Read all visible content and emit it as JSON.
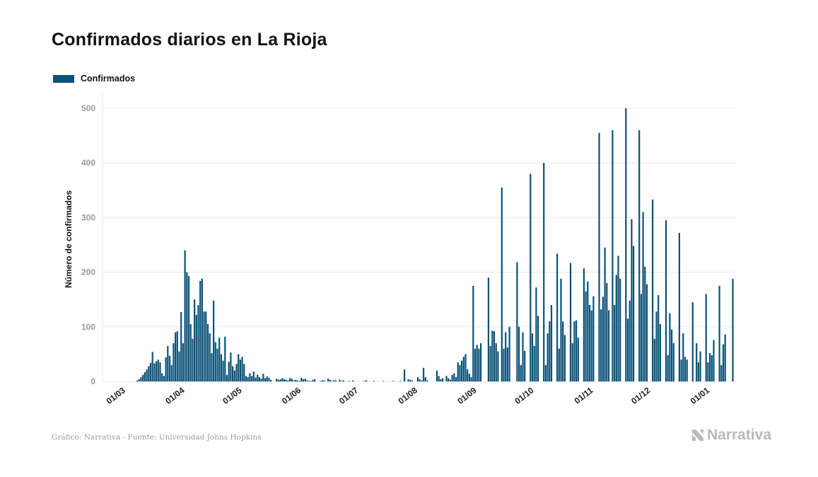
{
  "footer": {
    "credit": "Gráfico: Narrativa - Fuente: Universidad Johns Hopkins"
  },
  "brand": {
    "name": "Narrativa",
    "icon": "narrativa-logo-icon"
  },
  "colors": {
    "bar": "#0b5178",
    "grid": "#e8e8e8",
    "tick": "#9a9a9a",
    "brand": "#b9b9b9"
  },
  "chart_data": {
    "type": "bar",
    "title": "Confirmados diarios en La Rioja",
    "ylabel": "Número de confirmados",
    "xlabel": "",
    "ylim": [
      0,
      500
    ],
    "yticks": [
      0,
      100,
      200,
      300,
      400,
      500
    ],
    "xticks": [
      "01/03",
      "01/04",
      "01/05",
      "01/06",
      "01/07",
      "01/08",
      "01/09",
      "01/10",
      "01/11",
      "01/12",
      "01/01"
    ],
    "grid": true,
    "legend_position": "top-left",
    "start_date": "2020-03-01",
    "series": [
      {
        "name": "Confirmados",
        "values": [
          0,
          0,
          0,
          0,
          0,
          0,
          0,
          0,
          0,
          0,
          2,
          4,
          8,
          12,
          17,
          22,
          28,
          34,
          54,
          33,
          37,
          40,
          35,
          15,
          10,
          44,
          65,
          47,
          30,
          70,
          90,
          92,
          55,
          127,
          70,
          240,
          200,
          193,
          105,
          78,
          150,
          122,
          140,
          184,
          188,
          128,
          128,
          105,
          88,
          52,
          148,
          72,
          60,
          80,
          50,
          38,
          82,
          12,
          36,
          53,
          28,
          20,
          32,
          50,
          40,
          45,
          32,
          10,
          8,
          15,
          10,
          18,
          7,
          12,
          8,
          5,
          14,
          6,
          9,
          7,
          3,
          0,
          0,
          5,
          3,
          4,
          6,
          4,
          3,
          2,
          6,
          5,
          2,
          3,
          2,
          1,
          7,
          4,
          5,
          2,
          1,
          1,
          3,
          4,
          0,
          0,
          1,
          2,
          2,
          0,
          5,
          3,
          1,
          2,
          2,
          0,
          3,
          1,
          2,
          0,
          0,
          1,
          0,
          2,
          0,
          0,
          0,
          0,
          0,
          1,
          2,
          0,
          0,
          0,
          1,
          0,
          0,
          0,
          0,
          1,
          0,
          0,
          0,
          0,
          1,
          0,
          0,
          0,
          1,
          0,
          22,
          0,
          4,
          3,
          2,
          0,
          0,
          8,
          4,
          2,
          25,
          8,
          2,
          0,
          0,
          0,
          0,
          20,
          10,
          4,
          6,
          0,
          10,
          6,
          3,
          12,
          15,
          8,
          35,
          30,
          38,
          45,
          50,
          22,
          14,
          8,
          175,
          60,
          67,
          60,
          70,
          0,
          0,
          0,
          190,
          65,
          93,
          92,
          70,
          55,
          0,
          355,
          60,
          90,
          62,
          100,
          0,
          0,
          0,
          218,
          100,
          30,
          90,
          56,
          0,
          0,
          380,
          88,
          65,
          172,
          120,
          0,
          0,
          400,
          30,
          88,
          110,
          140,
          0,
          0,
          234,
          60,
          188,
          110,
          85,
          0,
          0,
          217,
          70,
          110,
          112,
          80,
          0,
          0,
          207,
          165,
          183,
          140,
          130,
          156,
          0,
          0,
          455,
          132,
          155,
          245,
          180,
          130,
          0,
          460,
          140,
          195,
          230,
          188,
          0,
          0,
          500,
          115,
          148,
          297,
          248,
          0,
          0,
          460,
          160,
          310,
          210,
          178,
          0,
          0,
          333,
          78,
          128,
          158,
          105,
          0,
          0,
          295,
          48,
          125,
          95,
          70,
          0,
          0,
          272,
          40,
          88,
          45,
          40,
          0,
          0,
          145,
          0,
          70,
          35,
          55,
          0,
          0,
          160,
          35,
          52,
          48,
          76,
          0,
          0,
          175,
          30,
          68,
          86,
          0,
          0,
          0,
          188
        ]
      }
    ]
  }
}
